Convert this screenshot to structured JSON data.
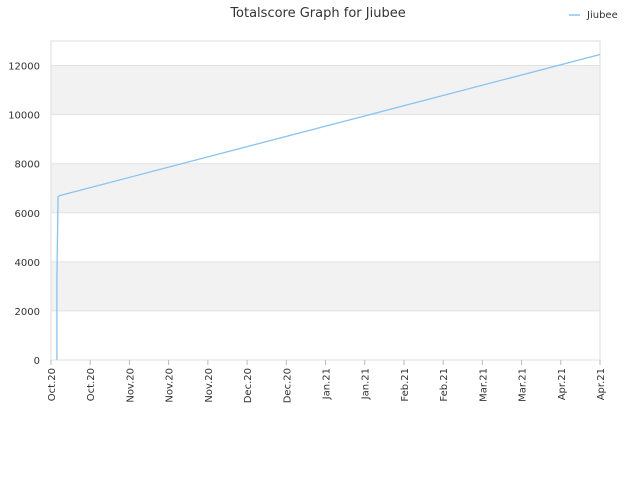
{
  "chart_data": {
    "type": "line",
    "title": "Totalscore Graph for Jiubee",
    "xlabel": "",
    "ylabel": "",
    "ylim": [
      0,
      13000
    ],
    "yticks": [
      0,
      2000,
      4000,
      6000,
      8000,
      10000,
      12000
    ],
    "xticks": [
      "Oct.20",
      "Oct.20",
      "Nov.20",
      "Nov.20",
      "Nov.20",
      "Dec.20",
      "Dec.20",
      "Jan.21",
      "Jan.21",
      "Feb.21",
      "Feb.21",
      "Mar.21",
      "Mar.21",
      "Apr.21",
      "Apr.21"
    ],
    "grid": true,
    "legend": "top-right",
    "series": [
      {
        "name": "Jiubee",
        "color": "#88c4f2",
        "points": [
          {
            "x": 0.15,
            "y": 0
          },
          {
            "x": 0.15,
            "y": 3300
          },
          {
            "x": 0.18,
            "y": 6650
          },
          {
            "x": 0.22,
            "y": 6700
          },
          {
            "x": 14.0,
            "y": 12450
          }
        ]
      }
    ]
  }
}
